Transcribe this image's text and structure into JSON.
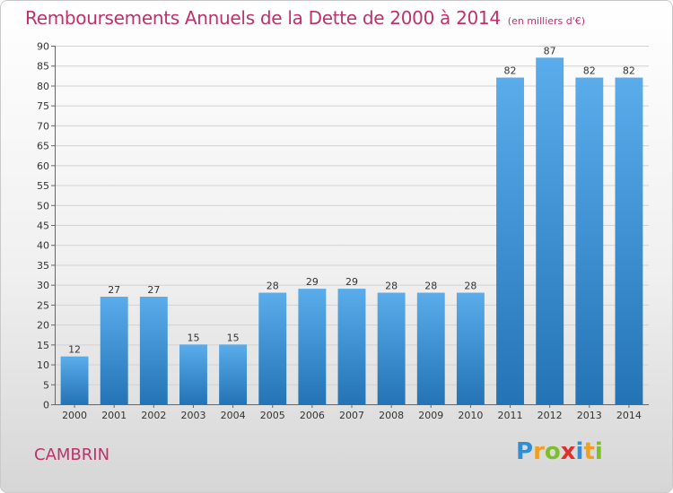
{
  "chart_data": {
    "type": "bar",
    "title": "Remboursements Annuels de la Dette de 2000 à 2014",
    "unit": "(en milliers d'€)",
    "categories": [
      "2000",
      "2001",
      "2002",
      "2003",
      "2004",
      "2005",
      "2006",
      "2007",
      "2008",
      "2009",
      "2010",
      "2011",
      "2012",
      "2013",
      "2014"
    ],
    "values": [
      12,
      27,
      27,
      15,
      15,
      28,
      29,
      29,
      28,
      28,
      28,
      82,
      87,
      82,
      82
    ],
    "ylim": [
      0,
      90
    ],
    "yticks": [
      0,
      5,
      10,
      15,
      20,
      25,
      30,
      35,
      40,
      45,
      50,
      55,
      60,
      65,
      70,
      75,
      80,
      85,
      90
    ],
    "xlabel": "",
    "ylabel": "",
    "grid": true,
    "bar_color": "#3d91d6"
  },
  "footer": {
    "city": "CAMBRIN",
    "logo": {
      "letters": [
        "P",
        "r",
        "o",
        "x",
        "i",
        "t",
        "i"
      ],
      "colors": [
        "#2e8fd6",
        "#f0a020",
        "#7cbf2a",
        "#e0302a",
        "#2e8fd6",
        "#f0a020",
        "#7cbf2a"
      ]
    }
  }
}
